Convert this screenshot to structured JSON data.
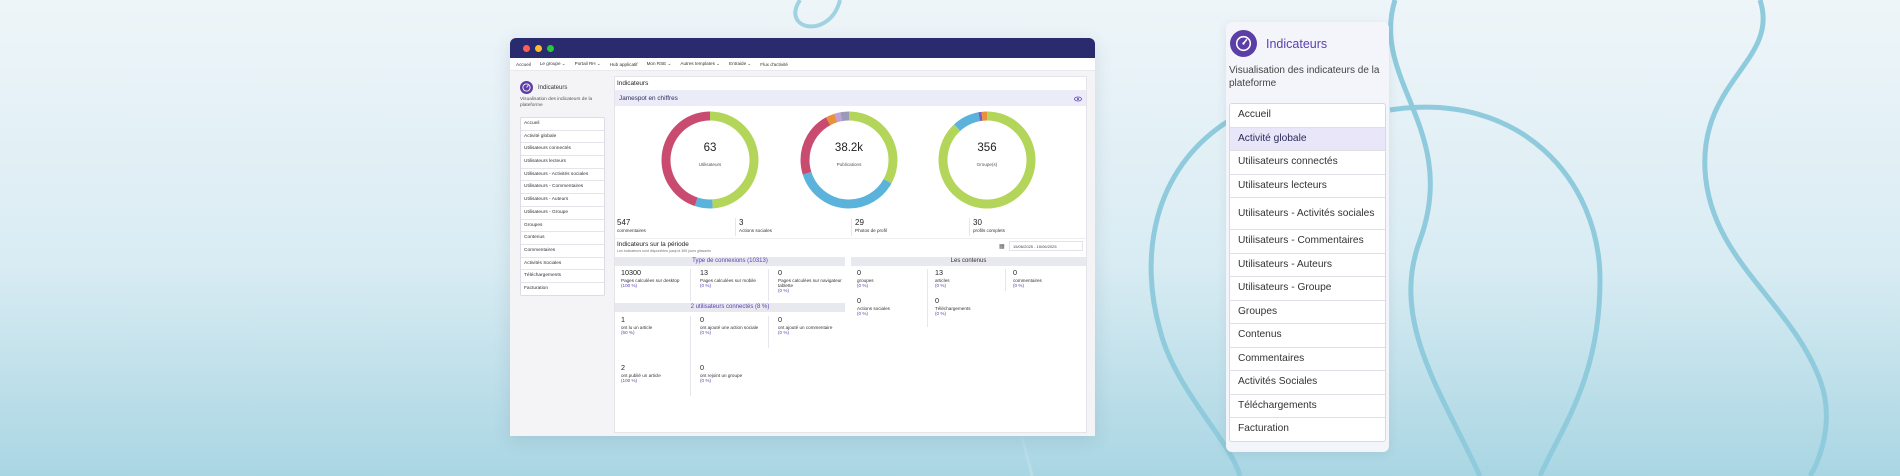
{
  "colors": {
    "accent": "#5b3fb0",
    "logo_bg": "#5b3fa6",
    "titlebar": "#2a2a6e",
    "donut_green": "#b3d65a",
    "donut_pink": "#c94b70",
    "donut_blue": "#5bb3dc",
    "donut_orange": "#e8903a"
  },
  "browser": {
    "nav": [
      "Accueil",
      "Le groupe",
      "Portail RH",
      "Hub applicatif",
      "Mon RSE",
      "Autres templates",
      "Entraide",
      "Flux d'activité"
    ],
    "sidebar": {
      "title": "Indicateurs",
      "subtitle": "Visualisation des indicateurs de la plateforme",
      "icon": "gauge-icon",
      "items": [
        "Accueil",
        "Activité globale",
        "Utilisateurs connectés",
        "Utilisateurs lecteurs",
        "Utilisateurs - Activités sociales",
        "Utilisateurs - Commentaires",
        "Utilisateurs - Auteurs",
        "Utilisateurs - Groupe",
        "Groupes",
        "Contenus",
        "Commentaires",
        "Activités Sociales",
        "Téléchargements",
        "Facturation"
      ]
    },
    "main": {
      "title": "Indicateurs",
      "band_title": "Jamespot en chiffres",
      "band_icon": "eye-icon",
      "donuts": [
        {
          "value": "63",
          "label": "Utilisateurs",
          "segments": [
            {
              "color": "#b3d65a",
              "fraction": 0.49
            },
            {
              "color": "#5bb3dc",
              "fraction": 0.06
            },
            {
              "color": "#c94b70",
              "fraction": 0.45
            }
          ]
        },
        {
          "value": "38.2k",
          "label": "Publications",
          "segments": [
            {
              "color": "#b3d65a",
              "fraction": 0.33
            },
            {
              "color": "#5bb3dc",
              "fraction": 0.37
            },
            {
              "color": "#c94b70",
              "fraction": 0.22
            },
            {
              "color": "#e8903a",
              "fraction": 0.03
            },
            {
              "color": "#c0a0d8",
              "fraction": 0.02
            },
            {
              "color": "#9a9ab8",
              "fraction": 0.03
            }
          ]
        },
        {
          "value": "356",
          "label": "Groupe(s)",
          "segments": [
            {
              "color": "#b3d65a",
              "fraction": 0.88
            },
            {
              "color": "#5bb3dc",
              "fraction": 0.09
            },
            {
              "color": "#7a5bc0",
              "fraction": 0.01
            },
            {
              "color": "#e8903a",
              "fraction": 0.02
            }
          ]
        }
      ],
      "stats": [
        {
          "value": "547",
          "label": "commentaires"
        },
        {
          "value": "3",
          "label": "Actions sociales"
        },
        {
          "value": "29",
          "label": "Photos de profil"
        },
        {
          "value": "30",
          "label": "profils complets"
        }
      ],
      "period": {
        "title": "Indicateurs sur la période",
        "note": "Les indicateurs sont disponibles jusqu'à 365 jours glissants",
        "calendar_icon": "calendar-icon",
        "date_range": "15/06/2025 - 15/06/2025"
      },
      "connexions": {
        "title": "Type de connexions (10313)",
        "cells": [
          {
            "value": "10300",
            "label": "Pages calculées sur desktop",
            "pct": "(100 %)"
          },
          {
            "value": "13",
            "label": "Pages calculées sur mobile",
            "pct": "(0 %)"
          },
          {
            "value": "0",
            "label": "Pages calculées sur navigateur tablette",
            "pct": "(0 %)"
          }
        ]
      },
      "users": {
        "title": "2 utilisateurs connectés (8 %)",
        "cells": [
          {
            "value": "1",
            "label": "ont lu un article",
            "pct": "(50 %)"
          },
          {
            "value": "0",
            "label": "ont ajouté une action sociale",
            "pct": "(0 %)"
          },
          {
            "value": "0",
            "label": "ont ajouté un commentaire",
            "pct": "(0 %)"
          },
          {
            "value": "2",
            "label": "ont publié un article",
            "pct": "(100 %)"
          },
          {
            "value": "0",
            "label": "ont rejoint un groupe",
            "pct": "(0 %)"
          }
        ]
      },
      "contenus": {
        "title": "Les contenus",
        "cells": [
          {
            "value": "0",
            "label": "groupes",
            "pct": "(0 %)"
          },
          {
            "value": "13",
            "label": "articles",
            "pct": "(0 %)"
          },
          {
            "value": "0",
            "label": "commentaires",
            "pct": "(0 %)"
          },
          {
            "value": "0",
            "label": "Actions sociales",
            "pct": "(0 %)"
          },
          {
            "value": "0",
            "label": "Téléchargements",
            "pct": "(0 %)"
          }
        ]
      }
    }
  },
  "panel": {
    "title": "Indicateurs",
    "subtitle": "Visualisation des indicateurs de la plateforme",
    "icon": "gauge-icon",
    "active_index": 1,
    "items": [
      "Accueil",
      "Activité globale",
      "Utilisateurs connectés",
      "Utilisateurs lecteurs",
      "Utilisateurs - Activités sociales",
      "Utilisateurs - Commentaires",
      "Utilisateurs - Auteurs",
      "Utilisateurs - Groupe",
      "Groupes",
      "Contenus",
      "Commentaires",
      "Activités Sociales",
      "Téléchargements",
      "Facturation"
    ]
  }
}
